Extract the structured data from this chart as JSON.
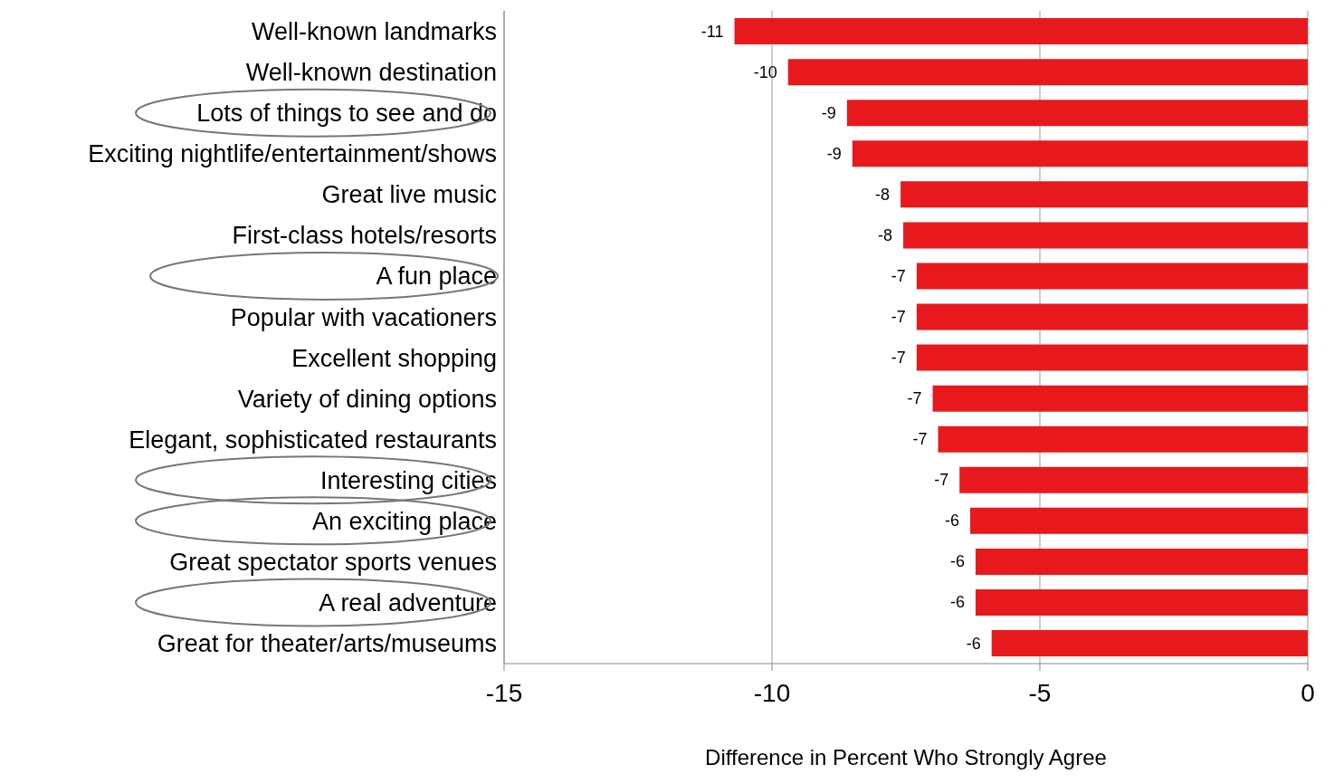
{
  "chart_data": {
    "type": "bar",
    "orientation": "horizontal",
    "xlabel": "Difference in Percent Who Strongly Agree",
    "categories": [
      "Well-known landmarks",
      "Well-known destination",
      "Lots of things to see and do",
      "Exciting nightlife/entertainment/shows",
      "Great live music",
      "First-class hotels/resorts",
      "A fun place",
      "Popular with vacationers",
      "Excellent shopping",
      "Variety of dining options",
      "Elegant, sophisticated restaurants",
      "Interesting cities",
      "An exciting place",
      "Great spectator sports venues",
      "A real adventure",
      "Great for theater/arts/museums"
    ],
    "values": [
      -10.7,
      -9.7,
      -8.6,
      -8.5,
      -7.6,
      -7.55,
      -7.3,
      -7.3,
      -7.3,
      -7.0,
      -6.9,
      -6.5,
      -6.3,
      -6.2,
      -6.2,
      -5.9
    ],
    "value_labels": [
      "-11",
      "-10",
      "-9",
      "-9",
      "-8",
      "-8",
      "-7",
      "-7",
      "-7",
      "-7",
      "-7",
      "-7",
      "-6",
      "-6",
      "-6",
      "-6"
    ],
    "color": "#e8191c",
    "xlim": [
      -15,
      0
    ],
    "xticks": [
      -15,
      -10,
      -5,
      0
    ],
    "grid": "x"
  }
}
